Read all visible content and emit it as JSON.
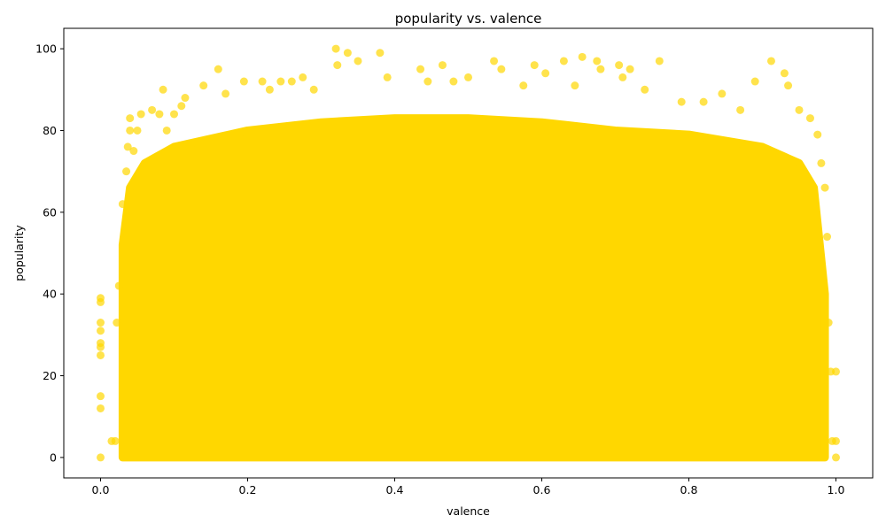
{
  "chart_data": {
    "type": "scatter",
    "title": "popularity vs. valence",
    "xlabel": "valence",
    "ylabel": "popularity",
    "xlim": [
      -0.05,
      1.05
    ],
    "ylim": [
      -5,
      105
    ],
    "xticks": [
      0.0,
      0.2,
      0.4,
      0.6,
      0.8,
      1.0
    ],
    "xtick_labels": [
      "0.0",
      "0.2",
      "0.4",
      "0.6",
      "0.8",
      "1.0"
    ],
    "yticks": [
      0,
      20,
      40,
      60,
      80,
      100
    ],
    "ytick_labels": [
      "0",
      "20",
      "40",
      "60",
      "80",
      "100"
    ],
    "grid": false,
    "legend": "none",
    "marker_color": "#FFD700",
    "marker_alpha": 0.7,
    "series": [
      {
        "points": [
          [
            0.0,
            0
          ],
          [
            0.0,
            12
          ],
          [
            0.0,
            15
          ],
          [
            0.0,
            25
          ],
          [
            0.0,
            27
          ],
          [
            0.0,
            28
          ],
          [
            0.0,
            31
          ],
          [
            0.0,
            33
          ],
          [
            0.0,
            38
          ],
          [
            0.0,
            39
          ],
          [
            0.015,
            4
          ],
          [
            0.02,
            4
          ],
          [
            0.022,
            33
          ],
          [
            0.025,
            42
          ],
          [
            0.03,
            62
          ],
          [
            0.035,
            70
          ],
          [
            0.037,
            76
          ],
          [
            0.04,
            80
          ],
          [
            0.04,
            83
          ],
          [
            0.045,
            75
          ],
          [
            0.05,
            80
          ],
          [
            0.055,
            84
          ],
          [
            0.07,
            85
          ],
          [
            0.08,
            84
          ],
          [
            0.085,
            90
          ],
          [
            0.09,
            80
          ],
          [
            0.1,
            84
          ],
          [
            0.11,
            86
          ],
          [
            0.115,
            88
          ],
          [
            0.14,
            91
          ],
          [
            0.16,
            95
          ],
          [
            0.17,
            89
          ],
          [
            0.195,
            92
          ],
          [
            0.22,
            92
          ],
          [
            0.23,
            90
          ],
          [
            0.245,
            92
          ],
          [
            0.26,
            92
          ],
          [
            0.275,
            93
          ],
          [
            0.29,
            90
          ],
          [
            0.32,
            100
          ],
          [
            0.322,
            96
          ],
          [
            0.336,
            99
          ],
          [
            0.35,
            97
          ],
          [
            0.38,
            99
          ],
          [
            0.39,
            93
          ],
          [
            0.435,
            95
          ],
          [
            0.445,
            92
          ],
          [
            0.465,
            96
          ],
          [
            0.48,
            92
          ],
          [
            0.5,
            93
          ],
          [
            0.535,
            97
          ],
          [
            0.545,
            95
          ],
          [
            0.575,
            91
          ],
          [
            0.59,
            96
          ],
          [
            0.605,
            94
          ],
          [
            0.63,
            97
          ],
          [
            0.645,
            91
          ],
          [
            0.655,
            98
          ],
          [
            0.675,
            97
          ],
          [
            0.68,
            95
          ],
          [
            0.705,
            96
          ],
          [
            0.71,
            93
          ],
          [
            0.72,
            95
          ],
          [
            0.74,
            90
          ],
          [
            0.76,
            97
          ],
          [
            0.79,
            87
          ],
          [
            0.82,
            87
          ],
          [
            0.845,
            89
          ],
          [
            0.87,
            85
          ],
          [
            0.89,
            92
          ],
          [
            0.912,
            97
          ],
          [
            0.93,
            94
          ],
          [
            0.935,
            91
          ],
          [
            0.95,
            85
          ],
          [
            0.965,
            83
          ],
          [
            0.975,
            79
          ],
          [
            0.98,
            72
          ],
          [
            0.985,
            66
          ],
          [
            0.988,
            54
          ],
          [
            0.99,
            33
          ],
          [
            0.993,
            21
          ],
          [
            0.995,
            4
          ],
          [
            1.0,
            0
          ],
          [
            1.0,
            4
          ],
          [
            1.0,
            21
          ]
        ]
      }
    ],
    "dense_region": {
      "x": [
        0.03,
        0.985
      ],
      "y_min": 0,
      "y_max_profile": [
        [
          0.03,
          52
        ],
        [
          0.04,
          66
        ],
        [
          0.06,
          72
        ],
        [
          0.1,
          76
        ],
        [
          0.2,
          80
        ],
        [
          0.3,
          82
        ],
        [
          0.4,
          83
        ],
        [
          0.5,
          83
        ],
        [
          0.6,
          82
        ],
        [
          0.7,
          80
        ],
        [
          0.8,
          79
        ],
        [
          0.9,
          76
        ],
        [
          0.95,
          72
        ],
        [
          0.97,
          66
        ],
        [
          0.985,
          40
        ]
      ]
    }
  }
}
